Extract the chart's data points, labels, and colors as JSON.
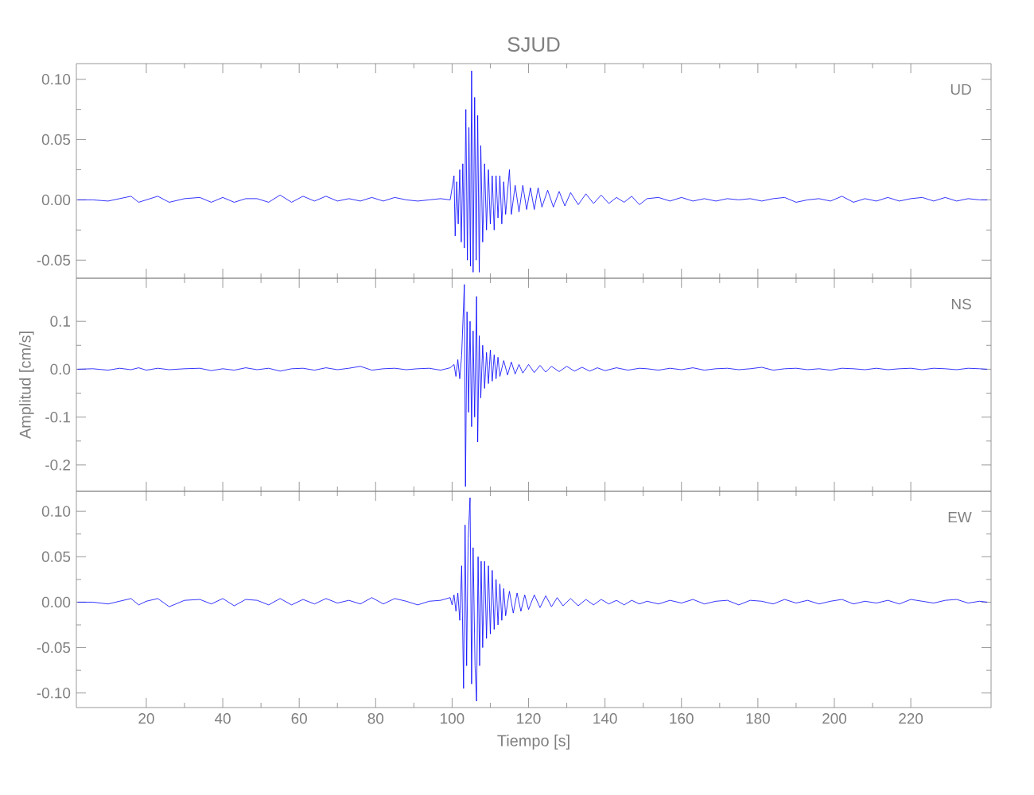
{
  "chart_data": [
    {
      "type": "line",
      "title": "SJUD",
      "annotations": [
        "UD"
      ],
      "x": [
        2,
        6,
        10,
        13,
        16,
        18,
        20,
        23,
        26,
        30,
        34,
        37,
        40,
        43,
        46,
        49,
        52,
        55,
        58,
        61,
        64,
        67,
        70,
        73,
        76,
        79,
        82,
        85,
        88,
        91,
        94,
        97,
        99.5,
        100.5,
        100.8,
        101.2,
        101.6,
        102,
        102.4,
        102.8,
        103.2,
        103.6,
        104,
        104.4,
        104.8,
        105.1,
        105.5,
        105.9,
        106.3,
        106.7,
        107.1,
        107.5,
        108,
        108.5,
        109,
        109.5,
        110,
        110.5,
        111,
        111.5,
        112,
        112.5,
        113,
        113.5,
        114,
        115,
        115.5,
        116.5,
        117.5,
        118.5,
        119.5,
        120.5,
        121.5,
        122.5,
        123.5,
        125,
        126.5,
        128,
        129.5,
        131,
        133,
        135,
        137,
        139,
        141,
        143,
        145,
        147,
        149,
        151,
        154,
        157,
        160,
        163,
        166,
        169,
        172,
        175,
        178,
        181,
        184,
        187,
        190,
        193,
        196,
        199,
        202,
        205,
        208,
        211,
        214,
        217,
        220,
        223,
        226,
        229,
        232,
        235,
        238,
        240
      ],
      "series": [
        {
          "color": "#0000ff",
          "values": [
            0,
            0,
            -0.001,
            0.001,
            0.003,
            -0.002,
            0,
            0.003,
            -0.002,
            0.001,
            0.002,
            -0.002,
            0.002,
            -0.002,
            0.001,
            0.001,
            -0.002,
            0.004,
            -0.002,
            0.003,
            -0.001,
            0.003,
            -0.001,
            0.001,
            -0.001,
            0.002,
            -0.001,
            0.002,
            0,
            -0.001,
            0,
            0.001,
            0,
            0.02,
            -0.03,
            0.015,
            -0.02,
            0.025,
            -0.035,
            0.03,
            -0.04,
            0.075,
            -0.05,
            0.06,
            -0.055,
            0.107,
            -0.06,
            0.085,
            -0.05,
            0.07,
            -0.06,
            0.045,
            -0.035,
            0.03,
            -0.025,
            0.025,
            -0.02,
            0.02,
            -0.025,
            0.02,
            -0.015,
            0.02,
            -0.02,
            0.015,
            -0.012,
            0.025,
            -0.012,
            0.012,
            -0.01,
            0.012,
            -0.008,
            0.01,
            -0.008,
            0.01,
            -0.006,
            0.008,
            -0.006,
            0.007,
            -0.005,
            0.006,
            -0.004,
            0.005,
            -0.003,
            0.004,
            -0.003,
            0.002,
            -0.002,
            0.003,
            -0.004,
            0.001,
            0.002,
            -0.001,
            0.002,
            -0.001,
            0.001,
            -0.001,
            0.001,
            0,
            0.001,
            -0.001,
            0.001,
            0.002,
            -0.002,
            0,
            0.001,
            -0.001,
            0.003,
            -0.002,
            0.001,
            -0.001,
            0.002,
            -0.001,
            0.001,
            0.002,
            -0.001,
            0.002,
            -0.001,
            0.001,
            0,
            0
          ]
        }
      ],
      "xlim": [
        1.7,
        241
      ],
      "xticks": [
        20,
        40,
        60,
        80,
        100,
        120,
        140,
        160,
        180,
        200,
        220
      ],
      "ylim": [
        -0.065,
        0.113
      ],
      "yticks": [
        {
          "value": -0.05,
          "label": "-0.05"
        },
        {
          "value": 0,
          "label": "0.00"
        },
        {
          "value": 0.05,
          "label": "0.05"
        },
        {
          "value": 0.1,
          "label": "0.10"
        }
      ],
      "tick_labels": "y"
    },
    {
      "type": "line",
      "ylabel": "Amplitud [cm/s]",
      "annotations": [
        "NS"
      ],
      "x": [
        2,
        6,
        10,
        13,
        16,
        18,
        20,
        23,
        26,
        30,
        34,
        37,
        40,
        43,
        46,
        49,
        52,
        55,
        58,
        61,
        64,
        67,
        70,
        73,
        76,
        79,
        82,
        85,
        88,
        91,
        94,
        97,
        99.5,
        100.5,
        101,
        101.5,
        102,
        102.5,
        103.2,
        103.5,
        103.9,
        104.3,
        104.7,
        105.1,
        105.5,
        105.9,
        106.4,
        106.7,
        107.1,
        107.5,
        108,
        108.5,
        109,
        109.5,
        110,
        110.5,
        111,
        111.5,
        112,
        112.5,
        113.5,
        114.5,
        115.5,
        116.5,
        117.5,
        118.5,
        120,
        121.5,
        123,
        124.5,
        126,
        128,
        130,
        132,
        134,
        136,
        138,
        140,
        143,
        146,
        149,
        151,
        154,
        157,
        160,
        163,
        166,
        169,
        172,
        175,
        178,
        181,
        184,
        187,
        190,
        193,
        196,
        199,
        202,
        205,
        208,
        211,
        214,
        217,
        220,
        223,
        226,
        229,
        232,
        235,
        238,
        240
      ],
      "series": [
        {
          "color": "#0000ff",
          "values": [
            0,
            0.001,
            -0.002,
            0.002,
            -0.001,
            0.003,
            -0.002,
            0.002,
            -0.001,
            0.001,
            0.002,
            -0.003,
            0.001,
            -0.002,
            0.003,
            -0.001,
            0.002,
            -0.004,
            0.001,
            0.002,
            -0.002,
            0.003,
            -0.001,
            0.002,
            0.006,
            -0.002,
            0.001,
            0.002,
            -0.001,
            0.001,
            0.002,
            -0.002,
            0.003,
            0.01,
            -0.015,
            0.02,
            -0.02,
            0.03,
            0.177,
            -0.245,
            0.12,
            -0.09,
            0.1,
            -0.12,
            0.08,
            -0.1,
            0.152,
            -0.152,
            0.07,
            -0.06,
            0.05,
            -0.04,
            0.035,
            -0.03,
            0.04,
            -0.025,
            0.03,
            -0.02,
            0.025,
            -0.015,
            0.018,
            -0.012,
            0.015,
            -0.01,
            0.01,
            -0.008,
            0.01,
            -0.007,
            0.008,
            -0.006,
            0.006,
            -0.005,
            0.006,
            -0.004,
            0.004,
            -0.004,
            0.003,
            -0.003,
            0.003,
            -0.002,
            0.002,
            0.001,
            -0.002,
            0.002,
            -0.001,
            0.003,
            -0.002,
            0.001,
            0.002,
            -0.001,
            0.001,
            0.004,
            -0.002,
            0.001,
            0.002,
            -0.001,
            0.001,
            -0.002,
            0.002,
            0.001,
            -0.001,
            0.002,
            -0.001,
            0.001,
            0.002,
            -0.001,
            0.002,
            0.001,
            -0.001,
            0.002,
            0.001,
            0
          ]
        }
      ],
      "xlim": [
        1.7,
        241
      ],
      "xticks": [
        20,
        40,
        60,
        80,
        100,
        120,
        140,
        160,
        180,
        200,
        220
      ],
      "ylim": [
        -0.255,
        0.19
      ],
      "yticks": [
        {
          "value": -0.2,
          "label": "-0.2"
        },
        {
          "value": -0.1,
          "label": "-0.1"
        },
        {
          "value": 0,
          "label": "0.0"
        },
        {
          "value": 0.1,
          "label": "0.1"
        }
      ],
      "tick_labels": "y"
    },
    {
      "type": "line",
      "xlabel": "Tiempo [s]",
      "annotations": [
        "EW"
      ],
      "x": [
        2,
        6,
        10,
        13,
        16,
        18,
        20,
        23,
        26,
        30,
        34,
        37,
        40,
        43,
        46,
        49,
        52,
        55,
        58,
        61,
        64,
        67,
        70,
        73,
        76,
        79,
        82,
        85,
        88,
        91,
        94,
        97,
        99.5,
        100,
        100.5,
        101,
        101.5,
        102,
        102.5,
        103,
        103.4,
        103.8,
        104.2,
        104.7,
        105.1,
        105.5,
        106,
        106.4,
        106.8,
        107.2,
        107.6,
        108,
        108.5,
        109,
        109.5,
        110,
        110.5,
        111,
        111.5,
        112,
        112.5,
        113,
        113.5,
        114,
        115,
        116,
        117,
        118,
        119,
        120,
        121.5,
        123,
        124.5,
        126,
        127.5,
        129,
        131,
        133,
        135,
        137,
        139,
        141,
        143,
        145,
        147,
        149,
        151,
        154,
        157,
        160,
        163,
        166,
        169,
        172,
        175,
        178,
        181,
        184,
        187,
        190,
        193,
        196,
        199,
        202,
        205,
        208,
        211,
        214,
        217,
        220,
        223,
        226,
        229,
        232,
        235,
        238,
        240
      ],
      "series": [
        {
          "color": "#0000ff",
          "values": [
            0,
            0,
            -0.002,
            0.001,
            0.004,
            -0.003,
            0.001,
            0.004,
            -0.005,
            0.002,
            0.003,
            -0.002,
            0.004,
            -0.004,
            0.003,
            0.002,
            -0.003,
            0.004,
            -0.003,
            0.003,
            -0.002,
            0.004,
            -0.001,
            0.002,
            -0.002,
            0.005,
            -0.002,
            0.004,
            0.001,
            -0.003,
            0.001,
            0.002,
            0.005,
            -0.003,
            0.008,
            -0.01,
            0.01,
            -0.02,
            0.04,
            -0.095,
            0.085,
            -0.07,
            0.07,
            0.115,
            -0.09,
            0.06,
            -0.07,
            -0.109,
            0.05,
            -0.07,
            0.045,
            -0.05,
            0.045,
            -0.04,
            0.04,
            -0.035,
            0.035,
            -0.03,
            0.025,
            -0.025,
            0.02,
            -0.02,
            0.015,
            -0.015,
            0.012,
            -0.012,
            0.01,
            -0.01,
            0.008,
            -0.008,
            0.008,
            -0.006,
            0.007,
            -0.005,
            0.005,
            -0.004,
            0.004,
            -0.004,
            0.003,
            -0.003,
            0.003,
            -0.002,
            0.002,
            -0.003,
            0.002,
            -0.002,
            0.001,
            -0.002,
            0.002,
            -0.001,
            0.003,
            -0.002,
            0.001,
            0.002,
            -0.003,
            0.002,
            0.001,
            -0.002,
            0.003,
            -0.001,
            0.002,
            -0.002,
            0.001,
            0.003,
            -0.002,
            0.001,
            -0.001,
            0.002,
            -0.002,
            0.003,
            0.001,
            -0.001,
            0.002,
            0.003,
            -0.001,
            0.001,
            0
          ]
        }
      ],
      "xlim": [
        1.7,
        241
      ],
      "xticks": [
        20,
        40,
        60,
        80,
        100,
        120,
        140,
        160,
        180,
        200,
        220
      ],
      "ylim": [
        -0.116,
        0.122
      ],
      "yticks": [
        {
          "value": -0.1,
          "label": "-0.10"
        },
        {
          "value": -0.05,
          "label": "-0.05"
        },
        {
          "value": 0,
          "label": "0.00"
        },
        {
          "value": 0.05,
          "label": "0.05"
        },
        {
          "value": 0.1,
          "label": "0.10"
        }
      ]
    }
  ]
}
